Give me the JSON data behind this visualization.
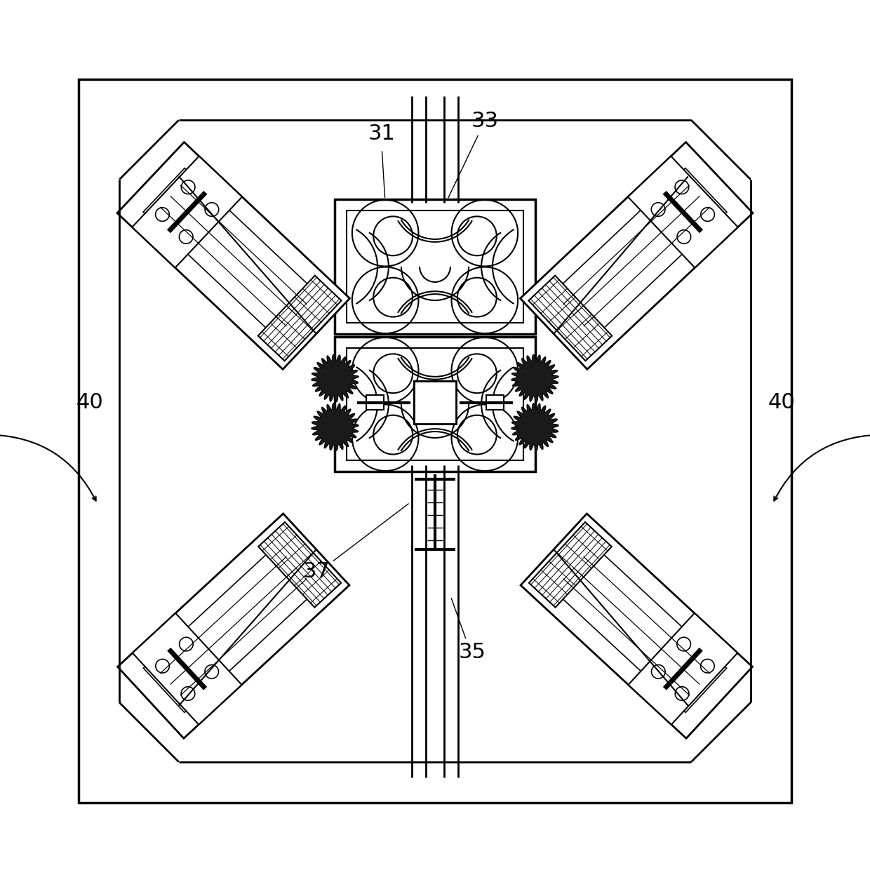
{
  "bg_color": "#ffffff",
  "line_color": "#000000",
  "fig_width": 12.4,
  "fig_height": 12.57,
  "label_fontsize": 22
}
